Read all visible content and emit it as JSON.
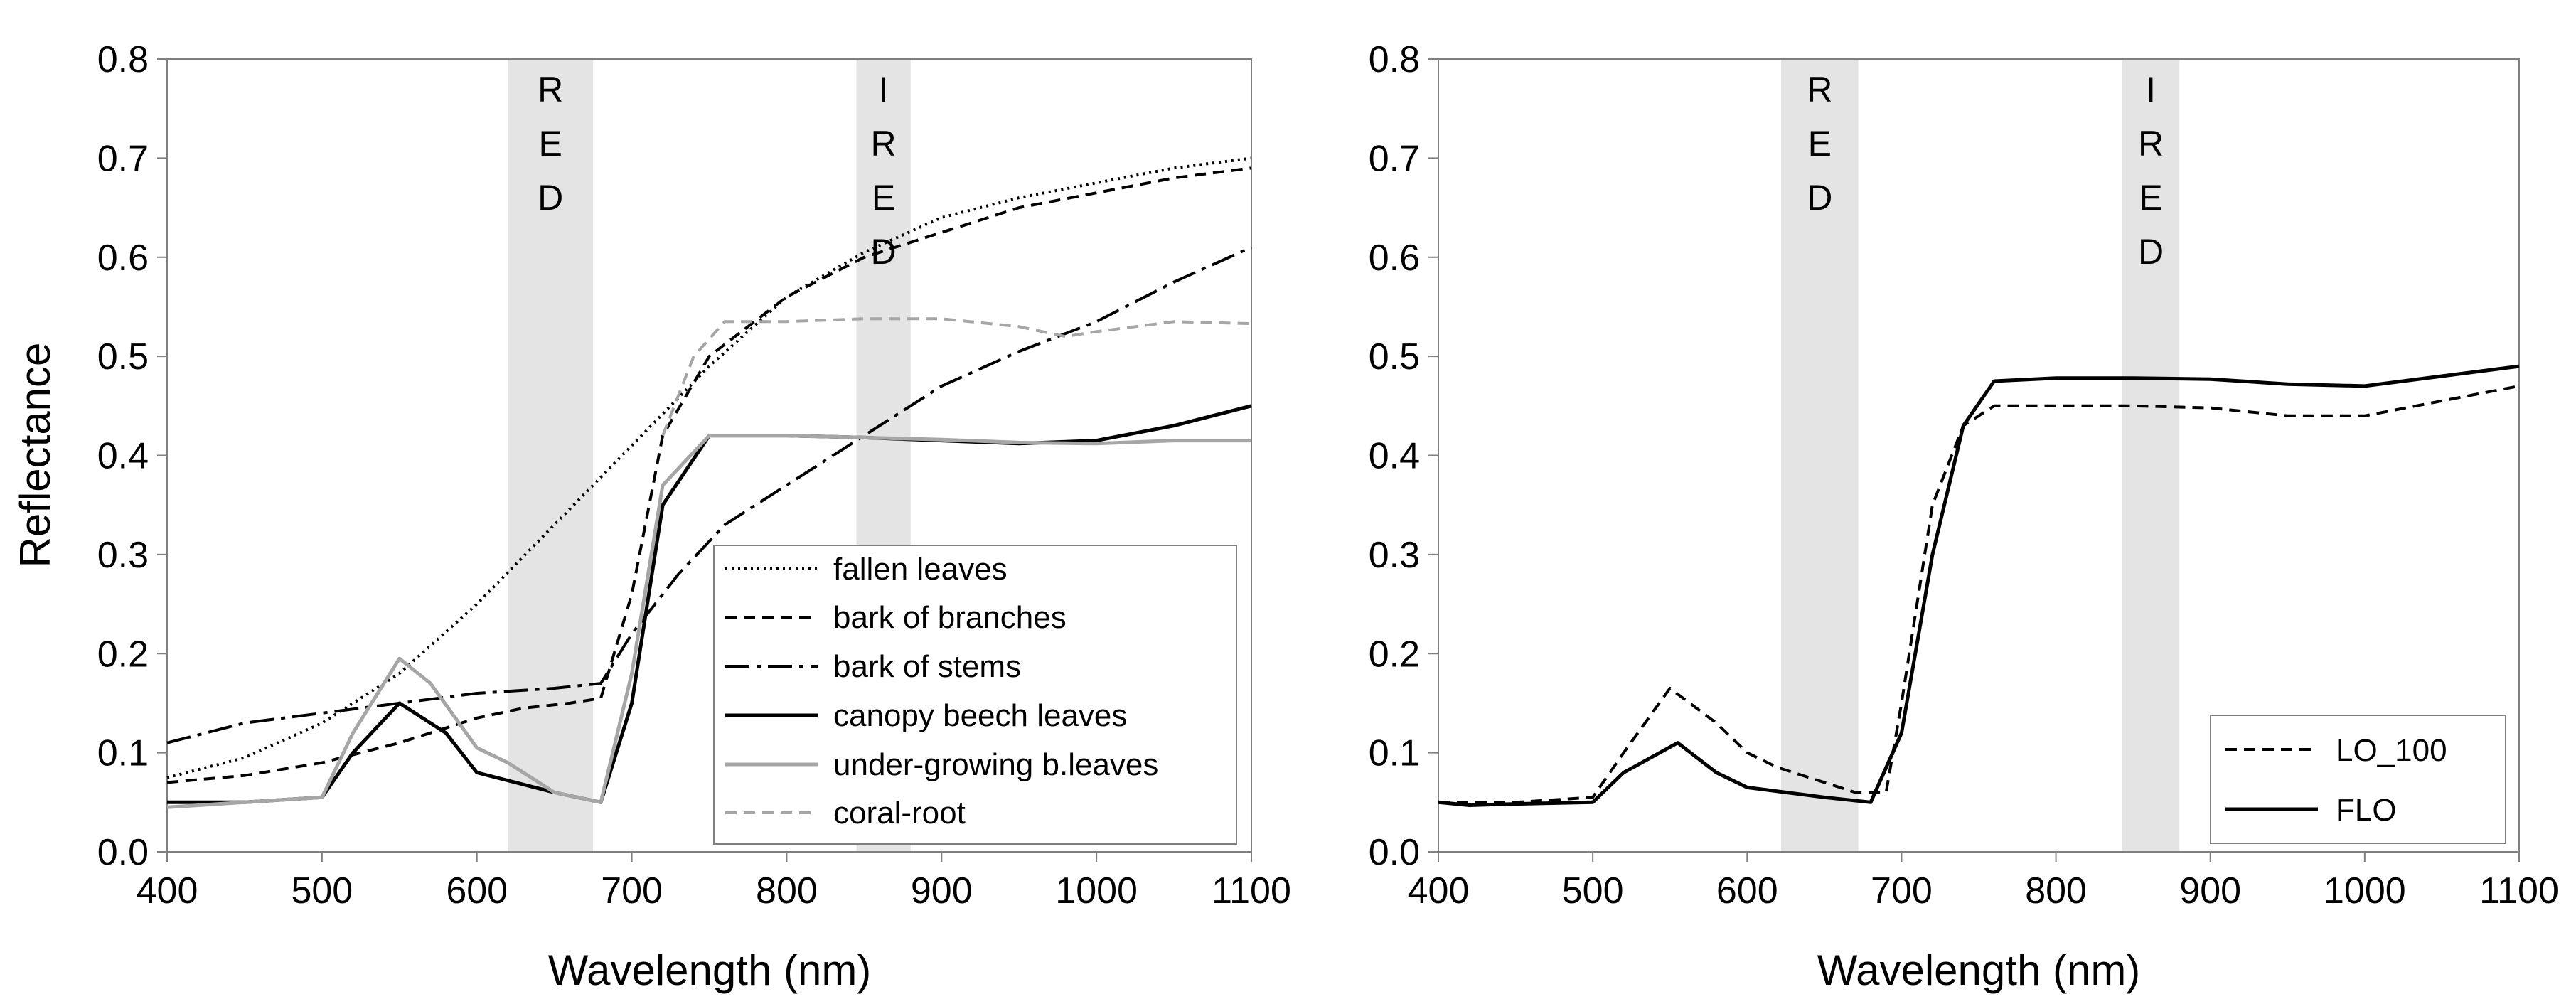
{
  "chart_data": [
    {
      "type": "line",
      "panel": "left",
      "xlabel": "Wavelength (nm)",
      "ylabel": "Reflectance",
      "xlim": [
        400,
        1100
      ],
      "ylim": [
        0,
        0.8
      ],
      "xticks": [
        400,
        500,
        600,
        700,
        800,
        900,
        1000,
        1100
      ],
      "yticks": [
        "0.0",
        "0.1",
        "0.2",
        "0.3",
        "0.4",
        "0.5",
        "0.6",
        "0.7",
        "0.8"
      ],
      "bands": [
        {
          "name": "RED",
          "letters": [
            "R",
            "E",
            "D"
          ],
          "range": [
            620,
            675
          ]
        },
        {
          "name": "IRED",
          "letters": [
            "I",
            "R",
            "E",
            "D"
          ],
          "range": [
            845,
            880
          ]
        }
      ],
      "legend_position": "bottom-right",
      "series": [
        {
          "name": "fallen leaves",
          "style": "dotted",
          "color": "#000000",
          "points": [
            [
              400,
              0.075
            ],
            [
              450,
              0.095
            ],
            [
              500,
              0.13
            ],
            [
              550,
              0.18
            ],
            [
              600,
              0.25
            ],
            [
              650,
              0.33
            ],
            [
              700,
              0.41
            ],
            [
              750,
              0.49
            ],
            [
              800,
              0.56
            ],
            [
              850,
              0.605
            ],
            [
              900,
              0.64
            ],
            [
              950,
              0.66
            ],
            [
              1000,
              0.675
            ],
            [
              1050,
              0.69
            ],
            [
              1100,
              0.7
            ]
          ]
        },
        {
          "name": "bark of branches",
          "style": "dashed",
          "color": "#000000",
          "points": [
            [
              400,
              0.07
            ],
            [
              450,
              0.077
            ],
            [
              500,
              0.09
            ],
            [
              550,
              0.11
            ],
            [
              600,
              0.135
            ],
            [
              630,
              0.145
            ],
            [
              660,
              0.15
            ],
            [
              680,
              0.155
            ],
            [
              700,
              0.26
            ],
            [
              720,
              0.42
            ],
            [
              750,
              0.5
            ],
            [
              800,
              0.56
            ],
            [
              850,
              0.6
            ],
            [
              900,
              0.625
            ],
            [
              950,
              0.65
            ],
            [
              1000,
              0.665
            ],
            [
              1050,
              0.68
            ],
            [
              1100,
              0.69
            ]
          ]
        },
        {
          "name": "bark of stems",
          "style": "dashdot",
          "color": "#000000",
          "points": [
            [
              400,
              0.11
            ],
            [
              450,
              0.13
            ],
            [
              500,
              0.14
            ],
            [
              550,
              0.15
            ],
            [
              600,
              0.16
            ],
            [
              650,
              0.165
            ],
            [
              680,
              0.17
            ],
            [
              700,
              0.22
            ],
            [
              730,
              0.28
            ],
            [
              760,
              0.33
            ],
            [
              800,
              0.37
            ],
            [
              850,
              0.42
            ],
            [
              900,
              0.47
            ],
            [
              950,
              0.505
            ],
            [
              1000,
              0.535
            ],
            [
              1050,
              0.575
            ],
            [
              1100,
              0.61
            ]
          ]
        },
        {
          "name": "canopy beech  leaves",
          "style": "solid",
          "color": "#000000",
          "points": [
            [
              400,
              0.05
            ],
            [
              450,
              0.05
            ],
            [
              500,
              0.055
            ],
            [
              520,
              0.1
            ],
            [
              550,
              0.15
            ],
            [
              580,
              0.12
            ],
            [
              600,
              0.08
            ],
            [
              650,
              0.06
            ],
            [
              680,
              0.05
            ],
            [
              700,
              0.15
            ],
            [
              720,
              0.35
            ],
            [
              750,
              0.42
            ],
            [
              800,
              0.42
            ],
            [
              850,
              0.418
            ],
            [
              900,
              0.415
            ],
            [
              950,
              0.412
            ],
            [
              1000,
              0.415
            ],
            [
              1050,
              0.43
            ],
            [
              1100,
              0.45
            ]
          ]
        },
        {
          "name": "under-growing b.leaves",
          "style": "solid",
          "color": "#a6a6a6",
          "points": [
            [
              400,
              0.045
            ],
            [
              450,
              0.05
            ],
            [
              500,
              0.055
            ],
            [
              520,
              0.12
            ],
            [
              550,
              0.195
            ],
            [
              570,
              0.17
            ],
            [
              600,
              0.105
            ],
            [
              620,
              0.09
            ],
            [
              650,
              0.06
            ],
            [
              680,
              0.05
            ],
            [
              700,
              0.18
            ],
            [
              720,
              0.37
            ],
            [
              750,
              0.42
            ],
            [
              800,
              0.42
            ],
            [
              850,
              0.418
            ],
            [
              900,
              0.416
            ],
            [
              950,
              0.413
            ],
            [
              1000,
              0.412
            ],
            [
              1050,
              0.415
            ],
            [
              1100,
              0.415
            ]
          ]
        },
        {
          "name": "coral-root",
          "style": "dashed",
          "color": "#a6a6a6",
          "points": [
            [
              720,
              0.42
            ],
            [
              740,
              0.5
            ],
            [
              760,
              0.535
            ],
            [
              800,
              0.535
            ],
            [
              850,
              0.538
            ],
            [
              900,
              0.538
            ],
            [
              950,
              0.53
            ],
            [
              980,
              0.52
            ],
            [
              1000,
              0.525
            ],
            [
              1050,
              0.535
            ],
            [
              1100,
              0.533
            ]
          ]
        }
      ]
    },
    {
      "type": "line",
      "panel": "right",
      "xlabel": "Wavelength (nm)",
      "ylabel": "",
      "xlim": [
        400,
        1100
      ],
      "ylim": [
        0,
        0.8
      ],
      "xticks": [
        400,
        500,
        600,
        700,
        800,
        900,
        1000,
        1100
      ],
      "yticks": [
        "0.0",
        "0.1",
        "0.2",
        "0.3",
        "0.4",
        "0.5",
        "0.6",
        "0.7",
        "0.8"
      ],
      "bands": [
        {
          "name": "RED",
          "letters": [
            "R",
            "E",
            "D"
          ],
          "range": [
            622,
            672
          ]
        },
        {
          "name": "IRED",
          "letters": [
            "I",
            "R",
            "E",
            "D"
          ],
          "range": [
            843,
            880
          ]
        }
      ],
      "legend_position": "bottom-right",
      "series": [
        {
          "name": "LO_100",
          "style": "dashed",
          "color": "#000000",
          "points": [
            [
              400,
              0.05
            ],
            [
              450,
              0.05
            ],
            [
              500,
              0.055
            ],
            [
              520,
              0.1
            ],
            [
              550,
              0.165
            ],
            [
              580,
              0.13
            ],
            [
              600,
              0.1
            ],
            [
              620,
              0.085
            ],
            [
              650,
              0.07
            ],
            [
              670,
              0.06
            ],
            [
              690,
              0.06
            ],
            [
              700,
              0.15
            ],
            [
              720,
              0.35
            ],
            [
              740,
              0.43
            ],
            [
              760,
              0.45
            ],
            [
              800,
              0.45
            ],
            [
              850,
              0.45
            ],
            [
              900,
              0.448
            ],
            [
              950,
              0.44
            ],
            [
              1000,
              0.44
            ],
            [
              1050,
              0.455
            ],
            [
              1100,
              0.47
            ]
          ]
        },
        {
          "name": "FLO",
          "style": "solid",
          "color": "#000000",
          "points": [
            [
              400,
              0.05
            ],
            [
              420,
              0.047
            ],
            [
              440,
              0.048
            ],
            [
              500,
              0.05
            ],
            [
              520,
              0.08
            ],
            [
              555,
              0.11
            ],
            [
              580,
              0.08
            ],
            [
              600,
              0.065
            ],
            [
              650,
              0.055
            ],
            [
              680,
              0.05
            ],
            [
              700,
              0.12
            ],
            [
              720,
              0.3
            ],
            [
              740,
              0.43
            ],
            [
              760,
              0.475
            ],
            [
              800,
              0.478
            ],
            [
              850,
              0.478
            ],
            [
              900,
              0.477
            ],
            [
              950,
              0.472
            ],
            [
              1000,
              0.47
            ],
            [
              1050,
              0.48
            ],
            [
              1100,
              0.49
            ]
          ]
        }
      ]
    }
  ]
}
